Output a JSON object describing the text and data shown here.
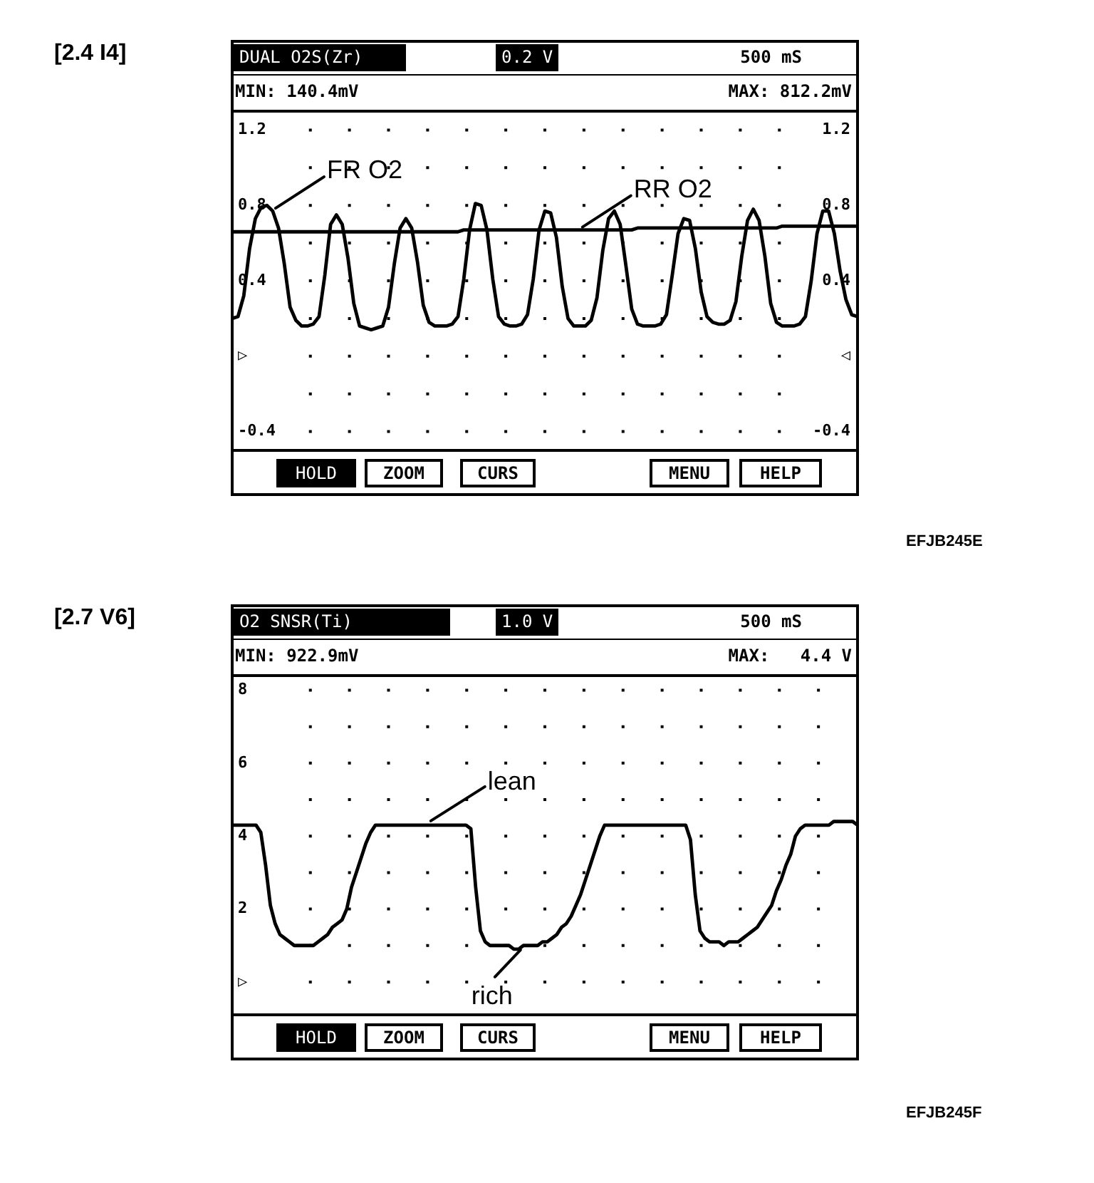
{
  "chart_data": [
    {
      "type": "line",
      "title": "DUAL O2S(Zr)",
      "ylabel": "0.2 V",
      "xlabel": "500 mS",
      "categories": [
        null,
        null,
        null,
        null,
        null,
        null,
        null,
        null,
        null,
        null,
        null,
        null,
        null,
        null,
        null,
        null,
        null,
        null,
        null,
        null,
        null,
        null,
        null,
        null,
        null,
        null,
        null,
        null,
        null,
        null,
        null,
        null,
        null,
        null,
        null,
        null,
        null,
        null,
        null,
        null,
        null,
        null,
        null,
        null,
        null,
        null,
        null,
        null,
        null,
        null,
        null,
        null,
        null,
        null,
        null,
        null,
        null,
        null,
        null,
        null,
        null,
        null,
        null,
        null,
        null,
        null,
        null,
        null,
        null,
        null,
        null,
        null,
        null,
        null,
        null,
        null,
        null,
        null,
        null,
        null,
        null,
        null,
        null,
        null,
        null,
        null,
        null,
        null,
        null,
        null,
        null,
        null,
        null,
        null,
        null,
        null,
        null,
        null,
        null,
        null,
        null,
        null,
        null,
        null,
        null,
        null,
        null,
        null,
        null
      ],
      "series": [
        {
          "name": "FR O2",
          "color": "#000000",
          "values": [
            0.2,
            0.21,
            0.32,
            0.57,
            0.73,
            0.79,
            0.8,
            0.77,
            0.68,
            0.49,
            0.26,
            0.19,
            0.16,
            0.16,
            0.17,
            0.21,
            0.43,
            0.7,
            0.75,
            0.7,
            0.52,
            0.28,
            0.16,
            0.15,
            0.14,
            0.15,
            0.16,
            0.26,
            0.49,
            0.68,
            0.73,
            0.68,
            0.5,
            0.27,
            0.18,
            0.16,
            0.16,
            0.16,
            0.17,
            0.21,
            0.41,
            0.67,
            0.81,
            0.8,
            0.67,
            0.41,
            0.21,
            0.17,
            0.16,
            0.16,
            0.17,
            0.22,
            0.41,
            0.67,
            0.77,
            0.76,
            0.63,
            0.37,
            0.2,
            0.16,
            0.16,
            0.16,
            0.19,
            0.31,
            0.56,
            0.73,
            0.77,
            0.7,
            0.48,
            0.25,
            0.17,
            0.16,
            0.16,
            0.16,
            0.17,
            0.22,
            0.43,
            0.65,
            0.73,
            0.72,
            0.57,
            0.34,
            0.21,
            0.18,
            0.17,
            0.17,
            0.19,
            0.29,
            0.53,
            0.72,
            0.78,
            0.72,
            0.53,
            0.28,
            0.18,
            0.16,
            0.16,
            0.16,
            0.17,
            0.21,
            0.4,
            0.65,
            0.77,
            0.77,
            0.65,
            0.45,
            0.3,
            0.22,
            0.21
          ]
        },
        {
          "name": "RR O2",
          "color": "#000000",
          "values": [
            0.66,
            0.66,
            0.66,
            0.66,
            0.66,
            0.66,
            0.66,
            0.66,
            0.66,
            0.66,
            0.66,
            0.66,
            0.66,
            0.66,
            0.66,
            0.66,
            0.66,
            0.66,
            0.66,
            0.66,
            0.66,
            0.66,
            0.66,
            0.66,
            0.66,
            0.66,
            0.66,
            0.66,
            0.66,
            0.66,
            0.66,
            0.66,
            0.66,
            0.66,
            0.66,
            0.66,
            0.66,
            0.66,
            0.66,
            0.66,
            0.67,
            0.67,
            0.67,
            0.67,
            0.67,
            0.67,
            0.67,
            0.67,
            0.67,
            0.67,
            0.67,
            0.67,
            0.67,
            0.67,
            0.67,
            0.67,
            0.67,
            0.67,
            0.67,
            0.67,
            0.67,
            0.67,
            0.67,
            0.67,
            0.67,
            0.67,
            0.67,
            0.67,
            0.67,
            0.67,
            0.68,
            0.68,
            0.68,
            0.68,
            0.68,
            0.68,
            0.68,
            0.68,
            0.68,
            0.68,
            0.68,
            0.68,
            0.68,
            0.68,
            0.68,
            0.68,
            0.68,
            0.68,
            0.68,
            0.68,
            0.68,
            0.68,
            0.68,
            0.68,
            0.68,
            0.69,
            0.69,
            0.69,
            0.69,
            0.69,
            0.69,
            0.69,
            0.69,
            0.69,
            0.69,
            0.69,
            0.69,
            0.69,
            0.69
          ]
        }
      ],
      "ylim": [
        -0.5,
        1.3
      ],
      "yticks": [
        -0.4,
        {
          "value": -0.2,
          "label": null
        },
        {
          "value": 0,
          "label": "▷"
        },
        {
          "value": 0.2,
          "label": null
        },
        0.4,
        {
          "value": 0.6,
          "label": null
        },
        0.8,
        {
          "value": 1.0,
          "label": null
        },
        1.2
      ],
      "y2lim": [
        -0.5,
        1.3
      ],
      "y2ticks": [
        -0.4,
        {
          "value": -0.2,
          "label": null
        },
        {
          "value": 0,
          "label": "◁"
        },
        {
          "value": 0.2,
          "label": null
        },
        0.4,
        {
          "value": 0.6,
          "label": null
        },
        0.8,
        {
          "value": 1.0,
          "label": null
        },
        1.2
      ],
      "grid": true,
      "marker": "none",
      "line_style": "solid",
      "annotations": [
        "[2.4 I4]",
        "MIN: 140.4mV",
        "MAX: 812.2mV",
        "HOLD",
        "ZOOM",
        "CURS",
        "MENU",
        "HELP",
        "EFJB245E"
      ]
    },
    {
      "type": "line",
      "title": "O2 SNSR(Ti)",
      "ylabel": "1.0 V",
      "xlabel": "500 mS",
      "categories": [
        null,
        null,
        null,
        null,
        null,
        null,
        null,
        null,
        null,
        null,
        null,
        null,
        null,
        null,
        null,
        null,
        null,
        null,
        null,
        null,
        null,
        null,
        null,
        null,
        null,
        null,
        null,
        null,
        null,
        null,
        null,
        null,
        null,
        null,
        null,
        null,
        null,
        null,
        null,
        null,
        null,
        null,
        null,
        null,
        null,
        null,
        null,
        null,
        null,
        null,
        null,
        null,
        null,
        null,
        null,
        null,
        null,
        null,
        null,
        null,
        null,
        null,
        null,
        null,
        null,
        null,
        null,
        null,
        null,
        null,
        null,
        null,
        null,
        null,
        null,
        null,
        null,
        null,
        null,
        null,
        null,
        null,
        null,
        null,
        null,
        null,
        null,
        null,
        null,
        null,
        null,
        null,
        null,
        null,
        null,
        null,
        null,
        null,
        null,
        null,
        null,
        null,
        null,
        null,
        null,
        null,
        null,
        null,
        null,
        null,
        null,
        null,
        null,
        null,
        null,
        null,
        null,
        null,
        null,
        null,
        null,
        null,
        null,
        null,
        null,
        null,
        null,
        null,
        null,
        null,
        null,
        null
      ],
      "series": [
        {
          "color": "#000000",
          "values": [
            4.3,
            4.3,
            4.3,
            4.3,
            4.3,
            4.3,
            4.1,
            3.2,
            2.1,
            1.6,
            1.3,
            1.2,
            1.1,
            1.0,
            1.0,
            1.0,
            1.0,
            1.0,
            1.1,
            1.2,
            1.3,
            1.5,
            1.6,
            1.7,
            2.0,
            2.6,
            3.0,
            3.4,
            3.8,
            4.1,
            4.3,
            4.3,
            4.3,
            4.3,
            4.3,
            4.3,
            4.3,
            4.3,
            4.3,
            4.3,
            4.3,
            4.3,
            4.3,
            4.3,
            4.3,
            4.3,
            4.3,
            4.3,
            4.3,
            4.3,
            4.2,
            2.6,
            1.4,
            1.1,
            1.0,
            1.0,
            1.0,
            1.0,
            1.0,
            0.9,
            0.9,
            1.0,
            1.0,
            1.0,
            1.0,
            1.1,
            1.1,
            1.2,
            1.3,
            1.5,
            1.6,
            1.8,
            2.1,
            2.4,
            2.8,
            3.2,
            3.6,
            4.0,
            4.3,
            4.3,
            4.3,
            4.3,
            4.3,
            4.3,
            4.3,
            4.3,
            4.3,
            4.3,
            4.3,
            4.3,
            4.3,
            4.3,
            4.3,
            4.3,
            4.3,
            4.3,
            3.9,
            2.4,
            1.4,
            1.2,
            1.1,
            1.1,
            1.1,
            1.0,
            1.1,
            1.1,
            1.1,
            1.2,
            1.3,
            1.4,
            1.5,
            1.7,
            1.9,
            2.1,
            2.5,
            2.8,
            3.2,
            3.5,
            4.0,
            4.2,
            4.3,
            4.3,
            4.3,
            4.3,
            4.3,
            4.3,
            4.4,
            4.4,
            4.4,
            4.4,
            4.4,
            4.3
          ]
        }
      ],
      "ylim": [
        -0.9,
        8.4
      ],
      "yticks": [
        {
          "value": 0,
          "label": "▷"
        },
        {
          "value": 1,
          "label": null
        },
        2,
        {
          "value": 3,
          "label": null
        },
        4,
        {
          "value": 5,
          "label": null
        },
        6,
        {
          "value": 7,
          "label": null
        },
        8
      ],
      "grid": true,
      "marker": "none",
      "line_style": "solid",
      "annotations": [
        "[2.7 V6]",
        "MIN: 922.9mV",
        "MAX:   4.4 V",
        "HOLD",
        "ZOOM",
        "CURS",
        "MENU",
        "HELP",
        "EFJB245F",
        "lean",
        "rich"
      ]
    }
  ]
}
